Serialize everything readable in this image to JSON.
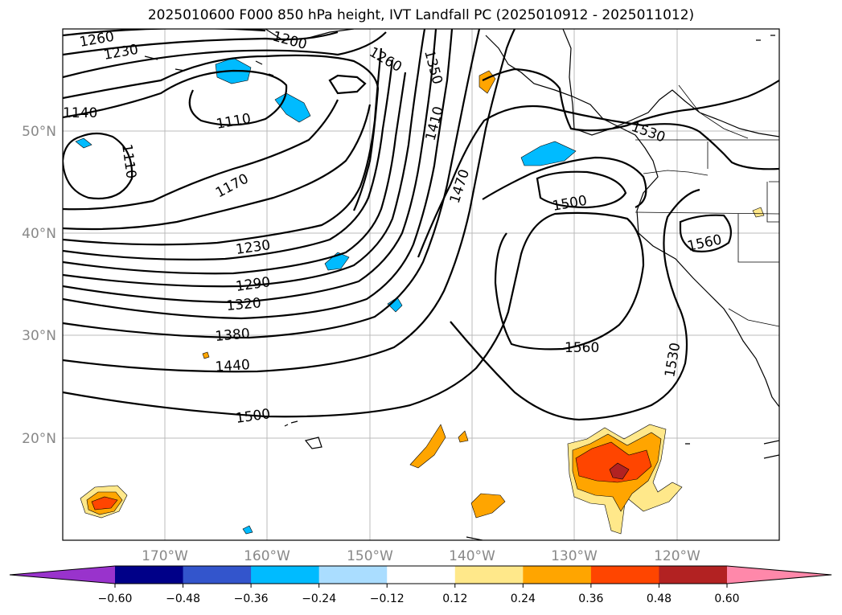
{
  "title": "2025010600 F000 850 hPa height, IVT Landfall PC (2025010912 - 2025011012)",
  "lat_labels": [
    "50°N",
    "40°N",
    "30°N",
    "20°N"
  ],
  "lon_labels": [
    "170°W",
    "160°W",
    "150°W",
    "140°W",
    "130°W",
    "120°W"
  ],
  "contour_labels": [
    "1260",
    "1230",
    "1200",
    "1260",
    "1350",
    "1410",
    "1470",
    "1500",
    "1530",
    "1560",
    "1110",
    "1110",
    "1140",
    "1170",
    "1230",
    "1290",
    "1320",
    "1380",
    "1440",
    "1500",
    "1560",
    "1530"
  ],
  "colorbar": {
    "ticks": [
      "−0.60",
      "−0.48",
      "−0.36",
      "−0.24",
      "−0.12",
      "0.12",
      "0.24",
      "0.36",
      "0.48",
      "0.60"
    ],
    "colors": [
      "#9933cc",
      "#000088",
      "#3355cc",
      "#00bbff",
      "#aaddff",
      "#ffffff",
      "#ffe88a",
      "#ffa500",
      "#ff4500",
      "#b22222",
      "#ff88aa"
    ]
  }
}
